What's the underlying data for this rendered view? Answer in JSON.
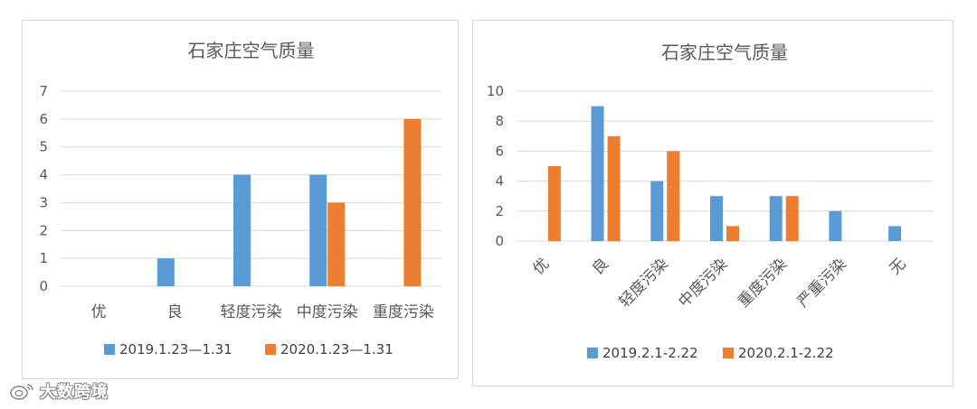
{
  "colors": {
    "series1": "#5b9bd5",
    "series2": "#ed7d31",
    "grid": "#d9d9d9",
    "text": "#595959"
  },
  "watermark": {
    "text": "大数跨境",
    "icon": "weibo-logo-icon"
  },
  "chart_data": [
    {
      "type": "bar",
      "title": "石家庄空气质量",
      "categories": [
        "优",
        "良",
        "轻度污染",
        "中度污染",
        "重度污染"
      ],
      "yticks": [
        "0",
        "1",
        "2",
        "3",
        "4",
        "5",
        "6",
        "7"
      ],
      "ylim": [
        0,
        7
      ],
      "grid": true,
      "legend": "bottom",
      "category_label_rotation": 0,
      "series": [
        {
          "name": "2019.1.23—1.31",
          "values": [
            0,
            1,
            4,
            4,
            0
          ]
        },
        {
          "name": "2020.1.23—1.31",
          "values": [
            0,
            0,
            0,
            3,
            6
          ]
        }
      ]
    },
    {
      "type": "bar",
      "title": "石家庄空气质量",
      "categories": [
        "优",
        "良",
        "轻度污染",
        "中度污染",
        "重度污染",
        "严重污染",
        "无"
      ],
      "yticks": [
        "0",
        "2",
        "4",
        "6",
        "8",
        "10"
      ],
      "ylim": [
        0,
        10
      ],
      "grid": true,
      "legend": "bottom",
      "category_label_rotation": -45,
      "series": [
        {
          "name": "2019.2.1-2.22",
          "values": [
            0,
            9,
            4,
            3,
            3,
            2,
            1
          ]
        },
        {
          "name": "2020.2.1-2.22",
          "values": [
            5,
            7,
            6,
            1,
            3,
            0,
            0
          ]
        }
      ]
    }
  ]
}
